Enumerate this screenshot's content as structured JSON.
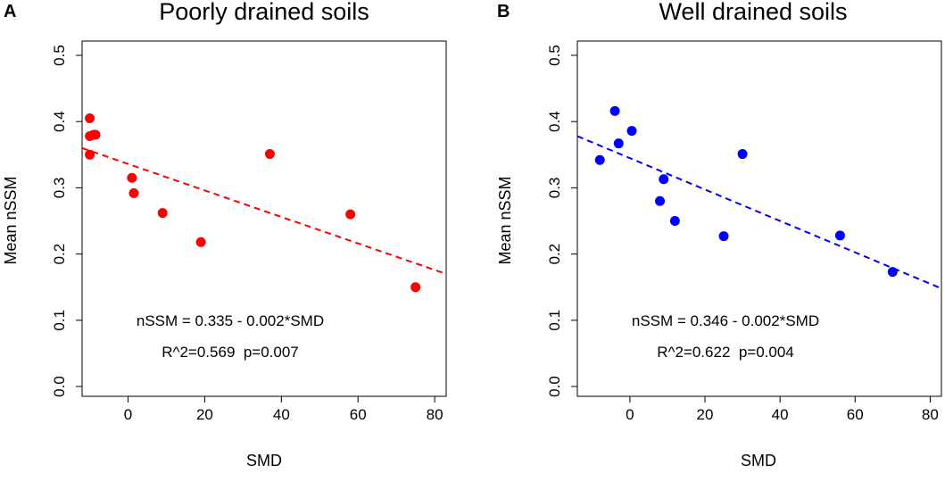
{
  "chart_data": [
    {
      "type": "scatter",
      "panel_label": "A",
      "title": "Poorly drained soils",
      "xlabel": "SMD",
      "ylabel": "Mean nSSM",
      "xlim": [
        -12,
        83
      ],
      "ylim": [
        0.0,
        0.5
      ],
      "xticks": [
        0,
        20,
        40,
        60,
        80
      ],
      "yticks": [
        0.0,
        0.1,
        0.2,
        0.3,
        0.4,
        0.5
      ],
      "color": "#ff0000",
      "points": [
        {
          "x": -10,
          "y": 0.405
        },
        {
          "x": -10,
          "y": 0.378
        },
        {
          "x": -9,
          "y": 0.38
        },
        {
          "x": -8.5,
          "y": 0.38
        },
        {
          "x": -10,
          "y": 0.35
        },
        {
          "x": 1,
          "y": 0.315
        },
        {
          "x": 1.5,
          "y": 0.292
        },
        {
          "x": 9,
          "y": 0.262
        },
        {
          "x": 19,
          "y": 0.218
        },
        {
          "x": 37,
          "y": 0.351
        },
        {
          "x": 58,
          "y": 0.26
        },
        {
          "x": 75,
          "y": 0.15
        }
      ],
      "fit": {
        "intercept": 0.335,
        "slope": -0.002,
        "x_range": [
          -12,
          83
        ],
        "endpoints_y": [
          0.36,
          0.17
        ],
        "style": "dashed"
      },
      "equation": "nSSM = 0.335 - 0.002*SMD",
      "stats": "R^2=0.569  p=0.007"
    },
    {
      "type": "scatter",
      "panel_label": "B",
      "title": "Well drained soils",
      "xlabel": "SMD",
      "ylabel": "Mean nSSM",
      "xlim": [
        -14,
        83
      ],
      "ylim": [
        0.0,
        0.5
      ],
      "xticks": [
        0,
        20,
        40,
        60,
        80
      ],
      "yticks": [
        0.0,
        0.1,
        0.2,
        0.3,
        0.4,
        0.5
      ],
      "color": "#0000ff",
      "points": [
        {
          "x": -8,
          "y": 0.342
        },
        {
          "x": -4,
          "y": 0.416
        },
        {
          "x": -3,
          "y": 0.367
        },
        {
          "x": 0.5,
          "y": 0.386
        },
        {
          "x": 8,
          "y": 0.28
        },
        {
          "x": 9,
          "y": 0.313
        },
        {
          "x": 12,
          "y": 0.25
        },
        {
          "x": 25,
          "y": 0.227
        },
        {
          "x": 30,
          "y": 0.351
        },
        {
          "x": 56,
          "y": 0.228
        },
        {
          "x": 70,
          "y": 0.173
        }
      ],
      "fit": {
        "intercept": 0.346,
        "slope": -0.002,
        "x_range": [
          -14,
          83
        ],
        "endpoints_y": [
          0.378,
          0.148
        ],
        "style": "dashed"
      },
      "equation": "nSSM = 0.346 - 0.002*SMD",
      "stats": "R^2=0.622  p=0.004"
    }
  ]
}
